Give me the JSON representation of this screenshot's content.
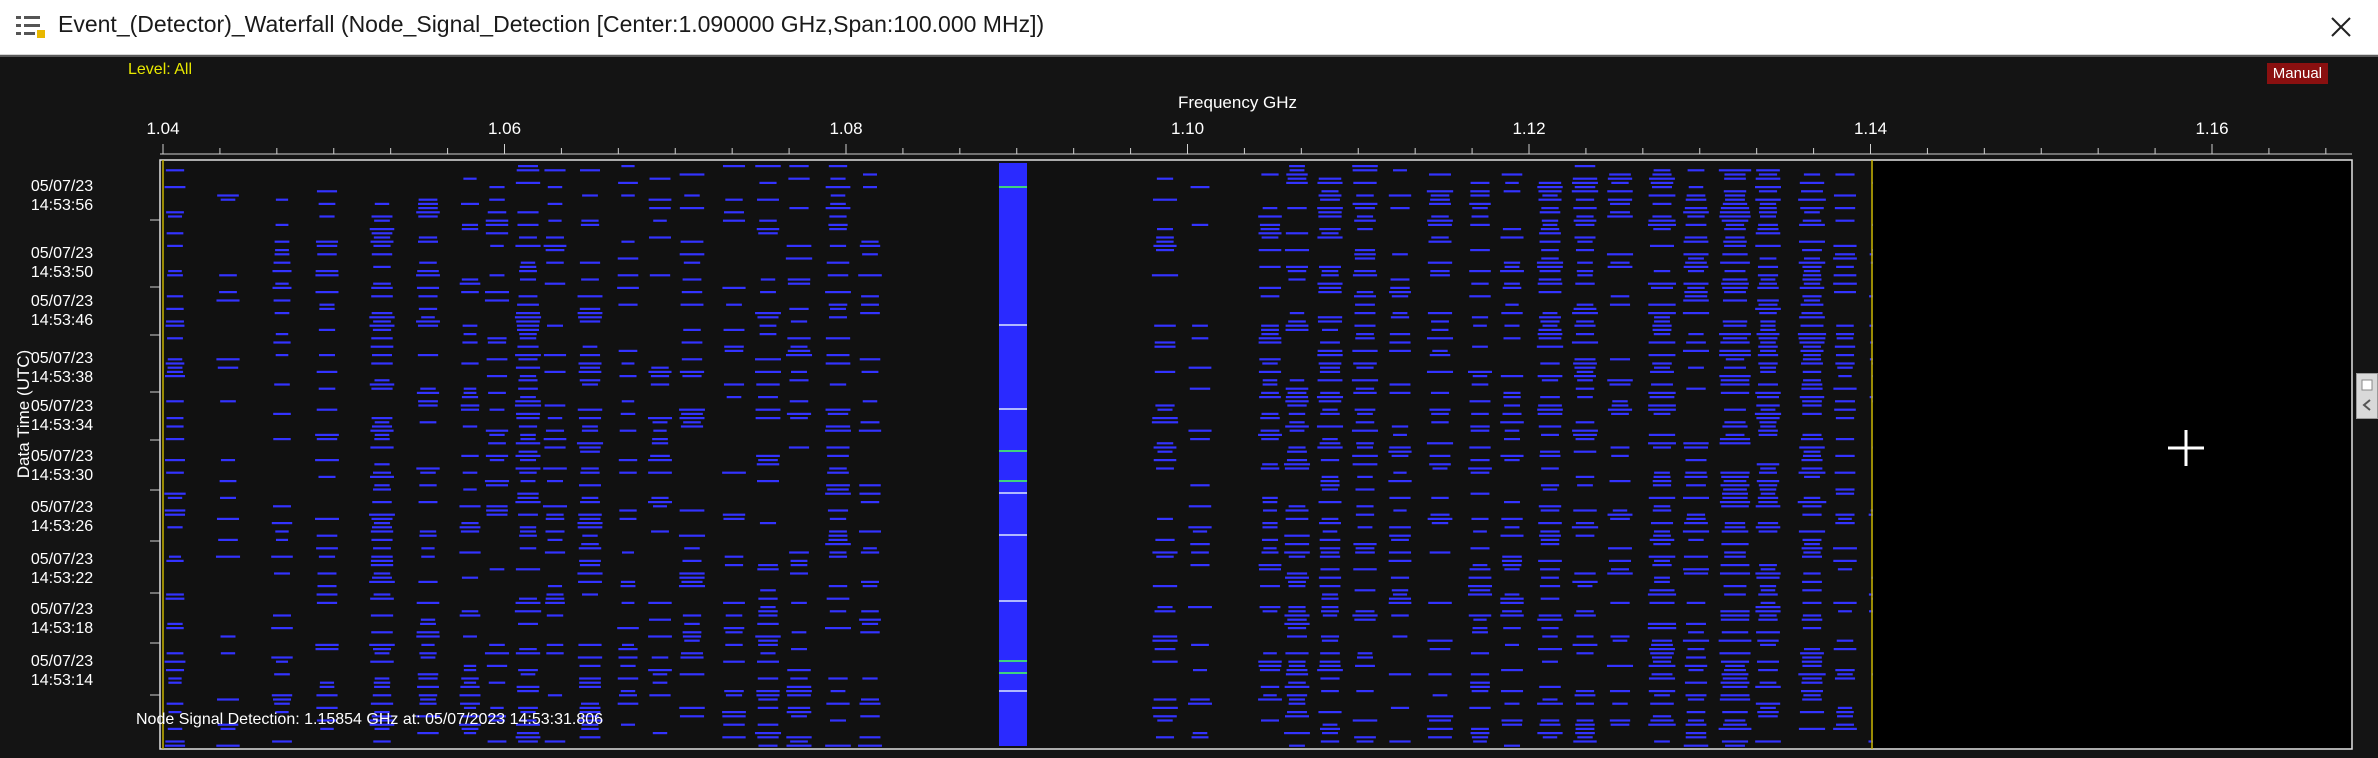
{
  "window": {
    "title": "Event_(Detector)_Waterfall (Node_Signal_Detection [Center:1.090000 GHz,Span:100.000 MHz])",
    "icon": "list-icon",
    "close_icon": "close-icon"
  },
  "waterfall": {
    "level_label": "Level: All",
    "mode_badge": "Manual",
    "x_axis_title": "Frequency GHz",
    "y_axis_title": "Data Time (UTC)",
    "x_ticks": [
      "1.04",
      "1.06",
      "1.08",
      "1.10",
      "1.12",
      "1.14",
      "1.16"
    ],
    "y_ticks": [
      {
        "date": "05/07/23",
        "time": "14:53:56"
      },
      {
        "date": "05/07/23",
        "time": "14:53:50"
      },
      {
        "date": "05/07/23",
        "time": "14:53:46"
      },
      {
        "date": "05/07/23",
        "time": "14:53:38"
      },
      {
        "date": "05/07/23",
        "time": "14:53:34"
      },
      {
        "date": "05/07/23",
        "time": "14:53:30"
      },
      {
        "date": "05/07/23",
        "time": "14:53:26"
      },
      {
        "date": "05/07/23",
        "time": "14:53:22"
      },
      {
        "date": "05/07/23",
        "time": "14:53:18"
      },
      {
        "date": "05/07/23",
        "time": "14:53:14"
      }
    ],
    "status_text": "Node Signal Detection: 1.15854 GHz at: 05/07/2023 14:53:31.806",
    "colors": {
      "background": "#141414",
      "plot_background": "#111111",
      "signal": "#3333ff",
      "strong_signal": "#2a2aff",
      "marker_line": "#c8b400",
      "axis_text": "#ffffff",
      "level_text": "#e8e800",
      "badge": "#8a1010"
    }
  }
}
